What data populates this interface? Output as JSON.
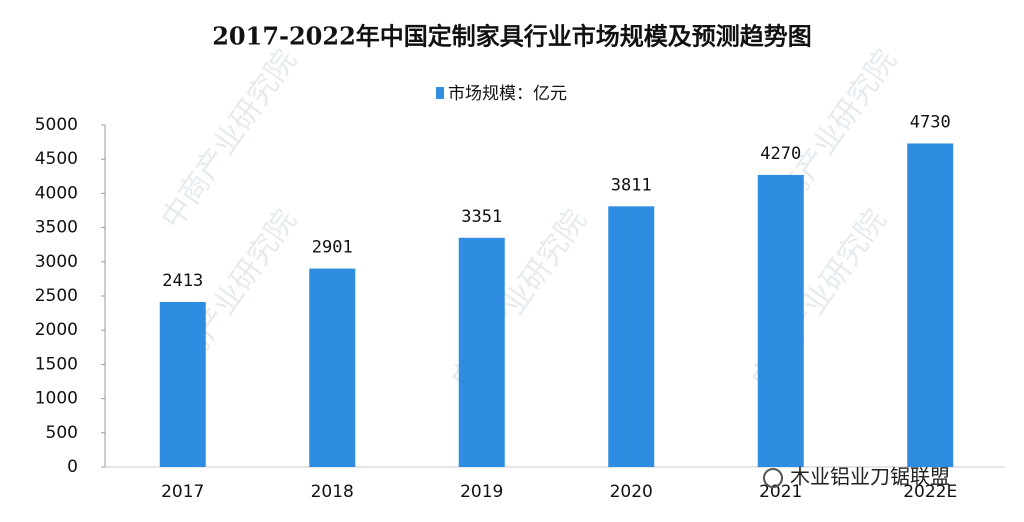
{
  "chart_data": {
    "type": "bar",
    "title": "2017-2022年中国定制家具行业市场规模及预测趋势图",
    "categories": [
      "2017",
      "2018",
      "2019",
      "2020",
      "2021",
      "2022E"
    ],
    "series": [
      {
        "name": "市场规模：亿元",
        "color": "#2e8de0",
        "values": [
          2413,
          2901,
          3351,
          3811,
          4270,
          4730
        ]
      }
    ],
    "ylim": [
      0,
      5000
    ],
    "yticks": [
      0,
      500,
      1000,
      1500,
      2000,
      2500,
      3000,
      3500,
      4000,
      4500,
      5000
    ],
    "grid": false,
    "legend": "top",
    "annotations": [
      "中商产业研究院",
      "木业铝业刀锯联盟"
    ]
  }
}
